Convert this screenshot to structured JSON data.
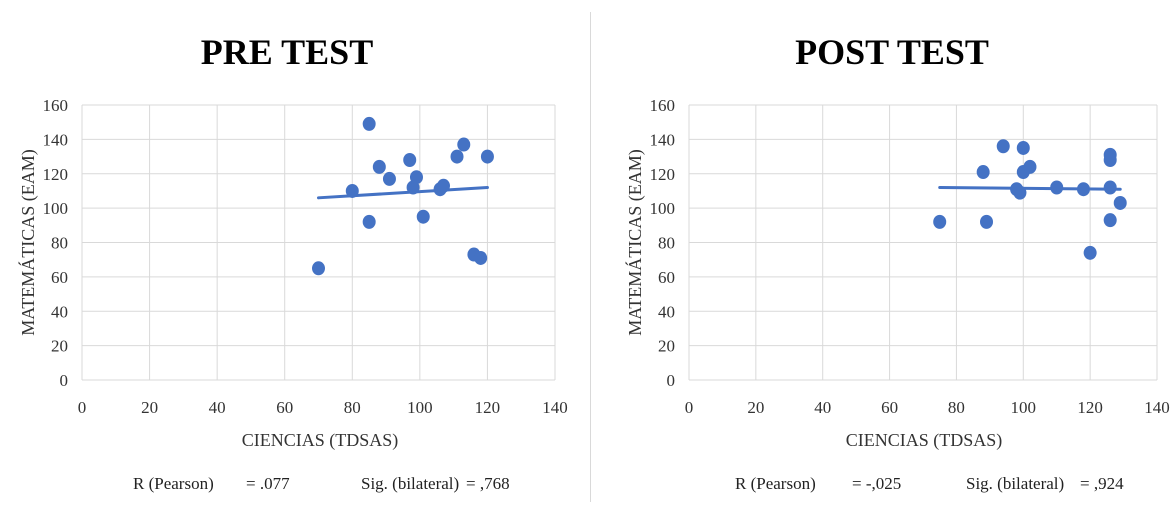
{
  "chart_data": [
    {
      "type": "scatter",
      "title": "PRE TEST",
      "xlabel": "CIENCIAS (TDSAS)",
      "ylabel": "MATEMÁTICAS (EAM)",
      "xlim": [
        0,
        140
      ],
      "ylim": [
        0,
        160
      ],
      "x_ticks": [
        "0",
        "20",
        "40",
        "60",
        "80",
        "100",
        "120",
        "140"
      ],
      "y_ticks": [
        "0",
        "20",
        "40",
        "60",
        "80",
        "100",
        "120",
        "140",
        "160"
      ],
      "grid": true,
      "points": [
        {
          "x": 70,
          "y": 65
        },
        {
          "x": 80,
          "y": 110
        },
        {
          "x": 85,
          "y": 149
        },
        {
          "x": 85,
          "y": 92
        },
        {
          "x": 88,
          "y": 124
        },
        {
          "x": 91,
          "y": 117
        },
        {
          "x": 97,
          "y": 128
        },
        {
          "x": 98,
          "y": 112
        },
        {
          "x": 99,
          "y": 118
        },
        {
          "x": 101,
          "y": 95
        },
        {
          "x": 106,
          "y": 111
        },
        {
          "x": 107,
          "y": 113
        },
        {
          "x": 111,
          "y": 130
        },
        {
          "x": 113,
          "y": 137
        },
        {
          "x": 116,
          "y": 73
        },
        {
          "x": 118,
          "y": 71
        },
        {
          "x": 120,
          "y": 130
        }
      ],
      "trendline": [
        {
          "x": 70,
          "y": 106
        },
        {
          "x": 120,
          "y": 112
        }
      ],
      "stats": {
        "r_label": "R (Pearson)",
        "r_value": "= .077",
        "sig_label": "Sig. (bilateral)",
        "sig_value": "= ,768"
      }
    },
    {
      "type": "scatter",
      "title": "POST TEST",
      "xlabel": "CIENCIAS (TDSAS)",
      "ylabel": "MATEMÁTICAS (EAM)",
      "xlim": [
        0,
        140
      ],
      "ylim": [
        0,
        160
      ],
      "x_ticks": [
        "0",
        "20",
        "40",
        "60",
        "80",
        "100",
        "120",
        "140"
      ],
      "y_ticks": [
        "0",
        "20",
        "40",
        "60",
        "80",
        "100",
        "120",
        "140",
        "160"
      ],
      "grid": true,
      "points": [
        {
          "x": 75,
          "y": 92
        },
        {
          "x": 88,
          "y": 121
        },
        {
          "x": 89,
          "y": 92
        },
        {
          "x": 94,
          "y": 136
        },
        {
          "x": 98,
          "y": 111
        },
        {
          "x": 99,
          "y": 109
        },
        {
          "x": 100,
          "y": 135
        },
        {
          "x": 100,
          "y": 121
        },
        {
          "x": 102,
          "y": 124
        },
        {
          "x": 110,
          "y": 112
        },
        {
          "x": 118,
          "y": 111
        },
        {
          "x": 120,
          "y": 74
        },
        {
          "x": 126,
          "y": 131
        },
        {
          "x": 126,
          "y": 128
        },
        {
          "x": 126,
          "y": 112
        },
        {
          "x": 126,
          "y": 93
        },
        {
          "x": 129,
          "y": 103
        }
      ],
      "trendline": [
        {
          "x": 75,
          "y": 112
        },
        {
          "x": 129,
          "y": 111
        }
      ],
      "stats": {
        "r_label": "R (Pearson)",
        "r_value": "= -,025",
        "sig_label": "Sig. (bilateral)",
        "sig_value": "= ,924"
      }
    }
  ]
}
